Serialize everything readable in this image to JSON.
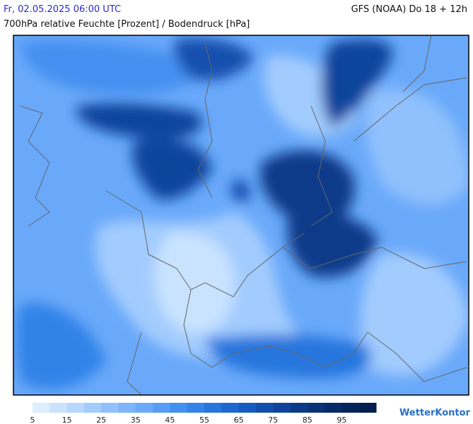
{
  "header": {
    "datetime": "Fr, 02.05.2025 06:00 UTC",
    "model": "GFS (NOAA) Do 18 + 12h",
    "subtitle": "700hPa relative Feuchte [Prozent] / Bodendruck [hPa]"
  },
  "legend": {
    "range": [
      5,
      105
    ],
    "ticks": [
      5,
      15,
      25,
      35,
      45,
      55,
      65,
      75,
      85,
      95
    ],
    "colors": [
      "#dceeff",
      "#c9e3ff",
      "#b6d8ff",
      "#a3ccfe",
      "#90c1fd",
      "#7db5fc",
      "#6aa9fa",
      "#579df6",
      "#4490f0",
      "#3383e8",
      "#2676dd",
      "#1d69d0",
      "#175cc0",
      "#124fae",
      "#0e449b",
      "#0b3a89",
      "#093278",
      "#072a69",
      "#06245c",
      "#051e50"
    ]
  },
  "brand": "WetterKontor"
}
